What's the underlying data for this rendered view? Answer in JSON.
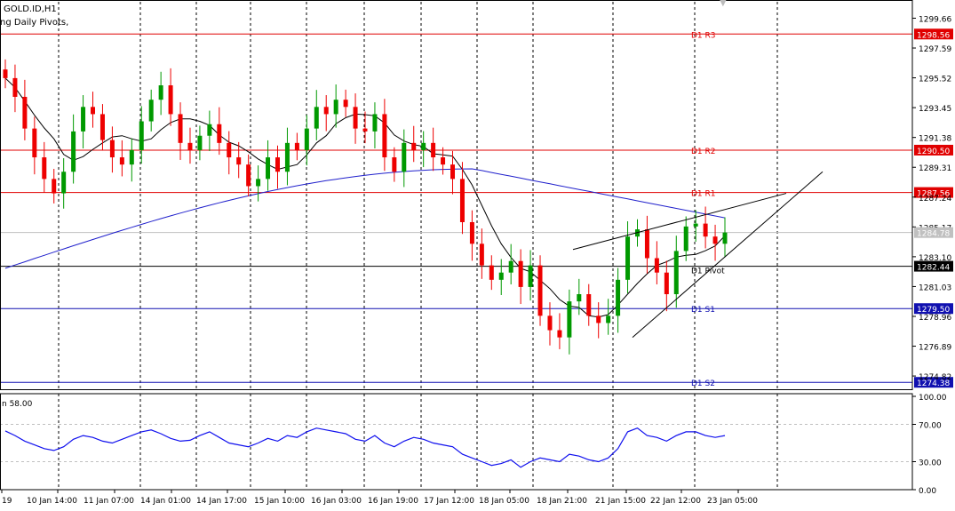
{
  "header": {
    "symbol": "GOLD.ID,H1",
    "indicator": "ng Daily Pivots,"
  },
  "colors": {
    "resistance": "#e00000",
    "pivot": "#000000",
    "support": "#1010b0",
    "candle_up": "#009900",
    "candle_down": "#ee0000",
    "ma_fast": "#000000",
    "ma_slow": "#2020cc",
    "rsi": "#1010ee",
    "background": "#ffffff"
  },
  "price_axis": {
    "ticks": [
      "1299.66",
      "1297.59",
      "1295.52",
      "1293.45",
      "1291.38",
      "1289.31",
      "1287.24",
      "1285.17",
      "1283.10",
      "1281.03",
      "1278.96",
      "1276.89",
      "1274.82"
    ],
    "tick_values": [
      1299.66,
      1297.59,
      1295.52,
      1293.45,
      1291.38,
      1289.31,
      1287.24,
      1285.17,
      1283.1,
      1281.03,
      1278.96,
      1276.89,
      1274.82
    ],
    "range": [
      1273.9,
      1300.8
    ]
  },
  "pivot_levels": [
    {
      "name": "D1 R3",
      "value": 1298.56,
      "label": "1298.56",
      "kind": "resistance"
    },
    {
      "name": "D1 R2",
      "value": 1290.5,
      "label": "1290.50",
      "kind": "resistance"
    },
    {
      "name": "D1 R1",
      "value": 1287.56,
      "label": "1287.56",
      "kind": "resistance"
    },
    {
      "name": "D1 Pivot",
      "value": 1282.44,
      "label": "1282.44",
      "kind": "pivot"
    },
    {
      "name": "D1 S1",
      "value": 1279.5,
      "label": "1279.50",
      "kind": "support"
    },
    {
      "name": "D1 S2",
      "value": 1274.38,
      "label": "1274.38",
      "kind": "support"
    }
  ],
  "current_price": {
    "value": 1284.78,
    "label": "1284.78"
  },
  "time_axis": {
    "labels": [
      "19",
      "10 Jan 14:00",
      "11 Jan 07:00",
      "14 Jan 01:00",
      "14 Jan 17:00",
      "15 Jan 10:00",
      "16 Jan 03:00",
      "16 Jan 19:00",
      "17 Jan 12:00",
      "18 Jan 05:00",
      "18 Jan 21:00",
      "21 Jan 15:00",
      "22 Jan 12:00",
      "23 Jan 05:00"
    ]
  },
  "rsi": {
    "label": "n 58.00",
    "ticks": [
      "100.00",
      "70.00",
      "30.00",
      "0.00"
    ],
    "tick_values": [
      100,
      70,
      30,
      0
    ],
    "levels": [
      70,
      30
    ]
  },
  "chart_data": {
    "type": "line",
    "title": "GOLD.ID,H1",
    "candles_close_sampled": [
      1295.5,
      1294.2,
      1292.0,
      1290.0,
      1288.5,
      1287.5,
      1289.0,
      1291.8,
      1293.5,
      1293.0,
      1291.2,
      1290.0,
      1289.5,
      1290.5,
      1292.5,
      1294.0,
      1295.0,
      1293.0,
      1291.0,
      1290.5,
      1291.5,
      1292.3,
      1291.0,
      1290.0,
      1289.5,
      1288.0,
      1288.5,
      1290.0,
      1289.0,
      1291.0,
      1290.5,
      1292.0,
      1293.5,
      1293.0,
      1294.0,
      1293.5,
      1292.0,
      1291.8,
      1293.0,
      1290.0,
      1289.0,
      1291.0,
      1290.5,
      1291.0,
      1290.0,
      1289.5,
      1288.5,
      1285.5,
      1284.0,
      1282.5,
      1281.5,
      1282.0,
      1282.8,
      1281.0,
      1282.5,
      1279.0,
      1278.0,
      1277.5,
      1280.0,
      1280.5,
      1279.0,
      1278.5,
      1279.0,
      1281.5,
      1284.5,
      1285.0,
      1283.0,
      1282.0,
      1280.5,
      1283.5,
      1285.2,
      1285.4,
      1284.5,
      1284.0,
      1284.78
    ],
    "rsi_sampled": [
      63,
      58,
      52,
      48,
      44,
      42,
      46,
      54,
      58,
      56,
      52,
      50,
      54,
      58,
      62,
      64,
      60,
      55,
      52,
      53,
      58,
      62,
      56,
      50,
      48,
      46,
      50,
      55,
      52,
      58,
      56,
      62,
      66,
      64,
      62,
      60,
      54,
      52,
      58,
      50,
      46,
      52,
      56,
      54,
      50,
      48,
      46,
      38,
      34,
      30,
      26,
      28,
      32,
      24,
      30,
      34,
      32,
      30,
      38,
      36,
      32,
      30,
      34,
      44,
      62,
      66,
      58,
      56,
      52,
      58,
      62,
      62,
      58,
      56,
      58
    ],
    "ylim": [
      1273.9,
      1300.8
    ]
  },
  "navigation": {
    "scroll_marker": "▼"
  }
}
